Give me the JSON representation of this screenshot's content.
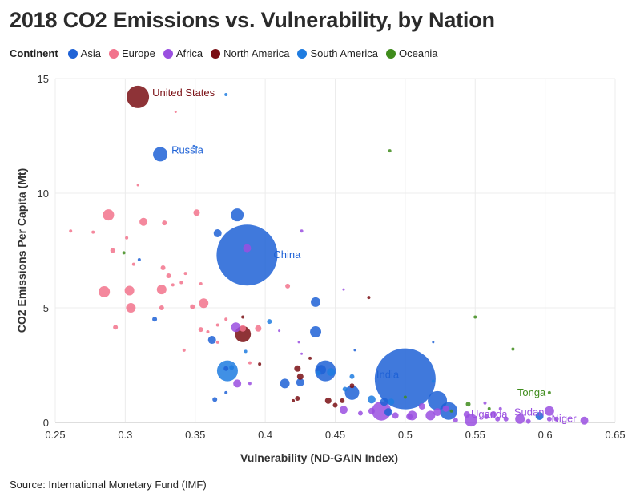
{
  "title": "2018 CO2 Emissions vs. Vulnerability, by Nation",
  "source": "Source: International Monetary Fund (IMF)",
  "legend": {
    "title": "Continent",
    "items": [
      {
        "label": "Asia",
        "color": "#1f62d6"
      },
      {
        "label": "Europe",
        "color": "#f2738c"
      },
      {
        "label": "Africa",
        "color": "#9a4fe0"
      },
      {
        "label": "North America",
        "color": "#7a0f14"
      },
      {
        "label": "South America",
        "color": "#1f7ce0"
      },
      {
        "label": "Oceania",
        "color": "#3f8c1c"
      }
    ]
  },
  "chart_data": {
    "type": "scatter",
    "title": "2018 CO2 Emissions vs. Vulnerability, by Nation",
    "xlabel": "Vulnerability (ND-GAIN Index)",
    "ylabel": "CO2 Emissions Per Capita (Mt)",
    "xlim": [
      0.25,
      0.65
    ],
    "ylim": [
      0,
      15
    ],
    "x_ticks": [
      "0.25",
      "0.3",
      "0.35",
      "0.4",
      "0.45",
      "0.5",
      "0.55",
      "0.6",
      "0.65"
    ],
    "y_ticks": [
      "0",
      "5",
      "10",
      "15"
    ],
    "grid": true,
    "legend_position": "top-left",
    "series": [
      {
        "name": "Asia",
        "color": "#1f62d6",
        "points": [
          [
            0.349,
            12.05,
            1
          ],
          [
            0.325,
            11.7,
            9
          ],
          [
            0.38,
            9.05,
            8
          ],
          [
            0.366,
            8.25,
            5
          ],
          [
            0.387,
            7.3,
            38
          ],
          [
            0.31,
            7.1,
            2
          ],
          [
            0.436,
            5.25,
            6
          ],
          [
            0.321,
            4.5,
            3
          ],
          [
            0.362,
            3.6,
            5
          ],
          [
            0.436,
            3.95,
            7
          ],
          [
            0.372,
            2.35,
            3
          ],
          [
            0.44,
            2.3,
            6
          ],
          [
            0.443,
            2.25,
            13
          ],
          [
            0.414,
            1.7,
            6
          ],
          [
            0.425,
            1.75,
            5
          ],
          [
            0.372,
            1.3,
            2
          ],
          [
            0.364,
            1.0,
            3
          ],
          [
            0.462,
            1.3,
            9
          ],
          [
            0.5,
            1.9,
            38
          ],
          [
            0.523,
            0.95,
            12
          ],
          [
            0.531,
            0.5,
            11
          ],
          [
            0.485,
            0.9,
            5
          ],
          [
            0.488,
            0.45,
            5
          ],
          [
            0.596,
            0.28,
            5
          ],
          [
            0.52,
            3.5,
            1
          ],
          [
            0.464,
            3.15,
            1
          ]
        ]
      },
      {
        "name": "Europe",
        "color": "#f2738c",
        "points": [
          [
            0.336,
            13.55,
            1
          ],
          [
            0.309,
            10.35,
            1
          ],
          [
            0.288,
            9.05,
            7
          ],
          [
            0.313,
            8.75,
            5
          ],
          [
            0.328,
            8.7,
            3
          ],
          [
            0.351,
            9.15,
            4
          ],
          [
            0.261,
            8.35,
            2
          ],
          [
            0.277,
            8.3,
            2
          ],
          [
            0.301,
            8.05,
            2
          ],
          [
            0.291,
            7.5,
            3
          ],
          [
            0.306,
            6.9,
            2
          ],
          [
            0.327,
            6.75,
            3
          ],
          [
            0.331,
            6.4,
            3
          ],
          [
            0.343,
            6.5,
            2
          ],
          [
            0.334,
            6.0,
            2
          ],
          [
            0.34,
            6.1,
            2
          ],
          [
            0.354,
            6.05,
            2
          ],
          [
            0.285,
            5.7,
            7
          ],
          [
            0.303,
            5.75,
            6
          ],
          [
            0.326,
            5.8,
            6
          ],
          [
            0.348,
            5.05,
            3
          ],
          [
            0.326,
            5.0,
            3
          ],
          [
            0.304,
            5.0,
            6
          ],
          [
            0.356,
            5.2,
            6
          ],
          [
            0.293,
            4.15,
            3
          ],
          [
            0.354,
            4.05,
            3
          ],
          [
            0.366,
            4.25,
            2
          ],
          [
            0.359,
            3.95,
            2
          ],
          [
            0.372,
            4.5,
            2
          ],
          [
            0.384,
            4.1,
            4
          ],
          [
            0.395,
            4.1,
            4
          ],
          [
            0.366,
            3.5,
            2
          ],
          [
            0.389,
            2.6,
            2
          ],
          [
            0.342,
            3.15,
            2
          ],
          [
            0.416,
            5.95,
            3
          ]
        ]
      },
      {
        "name": "Africa",
        "color": "#9a4fe0",
        "points": [
          [
            0.387,
            7.6,
            5
          ],
          [
            0.426,
            8.35,
            2
          ],
          [
            0.456,
            5.8,
            1
          ],
          [
            0.379,
            4.15,
            6
          ],
          [
            0.41,
            4.0,
            1
          ],
          [
            0.424,
            3.5,
            1
          ],
          [
            0.426,
            3.0,
            1
          ],
          [
            0.38,
            1.7,
            5
          ],
          [
            0.389,
            1.7,
            2
          ],
          [
            0.456,
            0.55,
            5
          ],
          [
            0.468,
            0.4,
            3
          ],
          [
            0.476,
            0.5,
            4
          ],
          [
            0.483,
            0.5,
            12
          ],
          [
            0.493,
            0.3,
            4
          ],
          [
            0.503,
            0.25,
            4
          ],
          [
            0.505,
            0.3,
            6
          ],
          [
            0.512,
            0.7,
            4
          ],
          [
            0.518,
            0.3,
            6
          ],
          [
            0.523,
            0.45,
            5
          ],
          [
            0.529,
            0.6,
            4
          ],
          [
            0.536,
            0.1,
            3
          ],
          [
            0.544,
            0.35,
            4
          ],
          [
            0.547,
            0.1,
            8
          ],
          [
            0.558,
            0.25,
            3
          ],
          [
            0.563,
            0.35,
            4
          ],
          [
            0.566,
            0.15,
            3
          ],
          [
            0.572,
            0.15,
            3
          ],
          [
            0.582,
            0.15,
            6
          ],
          [
            0.588,
            0.05,
            3
          ],
          [
            0.603,
            0.5,
            6
          ],
          [
            0.603,
            0.15,
            3
          ],
          [
            0.608,
            0.15,
            3
          ],
          [
            0.628,
            0.08,
            5
          ],
          [
            0.557,
            0.85,
            2
          ],
          [
            0.568,
            0.6,
            2
          ]
        ]
      },
      {
        "name": "North America",
        "color": "#7a0f14",
        "points": [
          [
            0.309,
            14.2,
            14
          ],
          [
            0.384,
            3.85,
            10
          ],
          [
            0.384,
            4.6,
            2
          ],
          [
            0.474,
            5.45,
            2
          ],
          [
            0.423,
            2.35,
            4
          ],
          [
            0.425,
            2.0,
            4
          ],
          [
            0.396,
            2.55,
            2
          ],
          [
            0.423,
            1.05,
            3
          ],
          [
            0.445,
            0.95,
            4
          ],
          [
            0.45,
            0.75,
            3
          ],
          [
            0.455,
            0.95,
            3
          ],
          [
            0.462,
            1.6,
            3
          ],
          [
            0.432,
            2.8,
            2
          ],
          [
            0.42,
            0.95,
            2
          ]
        ]
      },
      {
        "name": "South America",
        "color": "#1f7ce0",
        "points": [
          [
            0.372,
            14.3,
            2
          ],
          [
            0.351,
            12.0,
            1
          ],
          [
            0.403,
            4.4,
            3
          ],
          [
            0.386,
            3.1,
            2
          ],
          [
            0.373,
            2.25,
            13
          ],
          [
            0.376,
            2.4,
            3
          ],
          [
            0.438,
            2.15,
            3
          ],
          [
            0.447,
            2.2,
            5
          ],
          [
            0.457,
            1.45,
            3
          ],
          [
            0.462,
            2.0,
            3
          ],
          [
            0.476,
            1.0,
            5
          ],
          [
            0.49,
            0.9,
            4
          ],
          [
            0.52,
            1.8,
            2
          ]
        ]
      },
      {
        "name": "Oceania",
        "color": "#3f8c1c",
        "points": [
          [
            0.489,
            11.85,
            2
          ],
          [
            0.299,
            7.4,
            2
          ],
          [
            0.55,
            4.6,
            2
          ],
          [
            0.577,
            3.2,
            2
          ],
          [
            0.603,
            1.3,
            2
          ],
          [
            0.5,
            1.1,
            2
          ],
          [
            0.545,
            0.8,
            3
          ],
          [
            0.56,
            0.6,
            2
          ],
          [
            0.533,
            0.5,
            2
          ]
        ]
      }
    ],
    "annotations": [
      {
        "text": "United States",
        "x": 0.309,
        "y": 14.2,
        "series": "North America"
      },
      {
        "text": "Russia",
        "x": 0.325,
        "y": 11.7,
        "series": "Asia"
      },
      {
        "text": "China",
        "x": 0.387,
        "y": 7.3,
        "series": "Asia"
      },
      {
        "text": "India",
        "x": 0.5,
        "y": 1.9,
        "series": "Asia"
      },
      {
        "text": "Tonga",
        "x": 0.603,
        "y": 1.3,
        "series": "Oceania"
      },
      {
        "text": "Sudan",
        "x": 0.603,
        "y": 0.5,
        "series": "Africa"
      },
      {
        "text": "Uganda",
        "x": 0.547,
        "y": 0.1,
        "series": "Africa"
      },
      {
        "text": "Niger",
        "x": 0.628,
        "y": 0.08,
        "series": "Africa"
      }
    ]
  }
}
